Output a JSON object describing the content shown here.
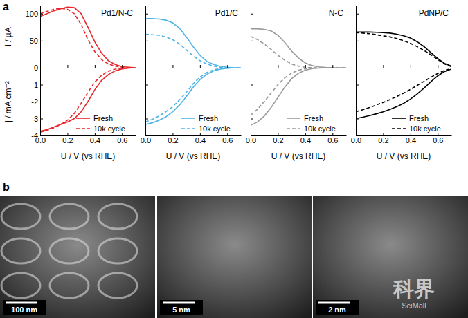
{
  "chart_data": [
    {
      "type": "line",
      "title": "Pd1/N-C",
      "y_label": "i / µA",
      "tick_labels": "y",
      "x": [
        0,
        0.05,
        0.1,
        0.15,
        0.2,
        0.25,
        0.3,
        0.35,
        0.4,
        0.45,
        0.5,
        0.55,
        0.6,
        0.65,
        0.7
      ],
      "series": [
        {
          "color": "#e8262a",
          "line_style": "solid",
          "values": [
            95,
            100,
            105,
            109,
            112,
            111,
            100,
            75,
            48,
            27,
            13,
            6,
            2,
            1,
            0
          ]
        },
        {
          "color": "#e8262a",
          "line_style": "dashed",
          "values": [
            100,
            104,
            108,
            110,
            108,
            100,
            80,
            52,
            30,
            15,
            7,
            3,
            1,
            0,
            0
          ]
        }
      ],
      "xlim": [
        0,
        0.7
      ],
      "ylim": [
        0,
        115
      ],
      "xticks": [
        {
          "value": 0,
          "label": "0.0"
        },
        {
          "value": 0.2,
          "label": "0.2"
        },
        {
          "value": 0.4,
          "label": "0.4"
        },
        {
          "value": 0.6,
          "label": "0.6"
        }
      ],
      "yticks": [
        0,
        50,
        100
      ]
    },
    {
      "type": "line",
      "title": "Pd1/C",
      "tick_labels": false,
      "x": [
        0,
        0.05,
        0.1,
        0.15,
        0.2,
        0.25,
        0.3,
        0.35,
        0.4,
        0.45,
        0.5,
        0.55,
        0.6,
        0.65,
        0.7
      ],
      "series": [
        {
          "color": "#4db3e6",
          "line_style": "solid",
          "values": [
            91,
            91,
            90,
            88,
            83,
            73,
            57,
            39,
            23,
            12,
            6,
            2.5,
            1,
            0,
            0
          ]
        },
        {
          "color": "#4db3e6",
          "line_style": "dashed",
          "values": [
            62,
            61,
            60,
            57,
            52,
            44,
            33,
            22,
            13,
            7,
            3,
            1,
            0.5,
            0,
            0
          ]
        }
      ],
      "xlim": [
        0,
        0.7
      ],
      "ylim": [
        0,
        115
      ],
      "xticks": [
        {
          "value": 0,
          "label": "0.0"
        },
        {
          "value": 0.2,
          "label": "0.2"
        },
        {
          "value": 0.4,
          "label": "0.4"
        },
        {
          "value": 0.6,
          "label": "0.6"
        }
      ],
      "yticks": [
        0,
        50,
        100
      ]
    },
    {
      "type": "line",
      "title": "N-C",
      "tick_labels": false,
      "x": [
        0,
        0.05,
        0.1,
        0.15,
        0.2,
        0.25,
        0.3,
        0.35,
        0.4,
        0.45,
        0.5,
        0.55,
        0.6,
        0.65,
        0.7
      ],
      "series": [
        {
          "color": "#999999",
          "line_style": "solid",
          "values": [
            72,
            72,
            71,
            68,
            60,
            47,
            31,
            18,
            9,
            4,
            1.5,
            0.5,
            0,
            0,
            0
          ]
        },
        {
          "color": "#999999",
          "line_style": "dashed",
          "values": [
            58,
            52,
            44,
            34,
            23,
            14,
            7,
            3,
            1,
            0.3,
            0,
            0,
            0,
            0,
            0
          ]
        }
      ],
      "xlim": [
        0,
        0.7
      ],
      "ylim": [
        0,
        115
      ],
      "xticks": [
        {
          "value": 0,
          "label": "0.0"
        },
        {
          "value": 0.2,
          "label": "0.2"
        },
        {
          "value": 0.4,
          "label": "0.4"
        },
        {
          "value": 0.6,
          "label": "0.6"
        }
      ],
      "yticks": [
        0,
        50,
        100
      ]
    },
    {
      "type": "line",
      "title": "PdNP/C",
      "tick_labels": false,
      "x": [
        0,
        0.05,
        0.1,
        0.15,
        0.2,
        0.25,
        0.3,
        0.35,
        0.4,
        0.45,
        0.5,
        0.55,
        0.6,
        0.65,
        0.7
      ],
      "series": [
        {
          "color": "#000000",
          "line_style": "solid",
          "values": [
            66,
            66,
            66,
            65.5,
            65,
            64,
            62,
            59,
            55,
            48,
            39,
            28,
            17,
            8,
            3
          ]
        },
        {
          "color": "#000000",
          "line_style": "dashed",
          "values": [
            65,
            64,
            63,
            61,
            59,
            57,
            54,
            50,
            45,
            39,
            32,
            24,
            15,
            7,
            2
          ]
        }
      ],
      "xlim": [
        0,
        0.7
      ],
      "ylim": [
        0,
        115
      ],
      "xticks": [
        {
          "value": 0,
          "label": "0.0"
        },
        {
          "value": 0.2,
          "label": "0.2"
        },
        {
          "value": 0.4,
          "label": "0.4"
        },
        {
          "value": 0.6,
          "label": "0.6"
        }
      ],
      "yticks": [
        0,
        50,
        100
      ]
    },
    {
      "type": "line",
      "y_label": "j / mA cm⁻²",
      "x_label": "U / V (vs RHE)",
      "tick_labels": true,
      "legend": "lower right",
      "x": [
        0,
        0.05,
        0.1,
        0.15,
        0.2,
        0.25,
        0.3,
        0.35,
        0.4,
        0.45,
        0.5,
        0.55,
        0.6,
        0.65,
        0.7
      ],
      "series": [
        {
          "name": "Fresh",
          "color": "#e8262a",
          "line_style": "solid",
          "values": [
            -3.75,
            -3.65,
            -3.5,
            -3.35,
            -3.2,
            -3.0,
            -2.6,
            -2.0,
            -1.3,
            -0.75,
            -0.4,
            -0.18,
            -0.07,
            -0.02,
            0
          ]
        },
        {
          "name": "10k cycle",
          "color": "#e8262a",
          "line_style": "dashed",
          "values": [
            -3.8,
            -3.7,
            -3.55,
            -3.35,
            -3.1,
            -2.7,
            -2.1,
            -1.45,
            -0.85,
            -0.45,
            -0.2,
            -0.08,
            -0.03,
            0,
            0
          ]
        }
      ],
      "xlim": [
        0,
        0.7
      ],
      "ylim": [
        -4,
        0
      ],
      "xticks": [
        {
          "value": 0,
          "label": "0.0"
        },
        {
          "value": 0.2,
          "label": "0.2"
        },
        {
          "value": 0.4,
          "label": "0.4"
        },
        {
          "value": 0.6,
          "label": "0.6"
        }
      ],
      "yticks": [
        -4,
        -3,
        -2,
        -1
      ]
    },
    {
      "type": "line",
      "x_label": "U / V (vs RHE)",
      "tick_labels": "x",
      "legend": "lower right",
      "x": [
        0,
        0.05,
        0.1,
        0.15,
        0.2,
        0.25,
        0.3,
        0.35,
        0.4,
        0.45,
        0.5,
        0.55,
        0.6,
        0.65,
        0.7
      ],
      "series": [
        {
          "name": "Fresh",
          "color": "#4db3e6",
          "line_style": "solid",
          "values": [
            -3.35,
            -3.25,
            -3.1,
            -2.9,
            -2.6,
            -2.2,
            -1.7,
            -1.15,
            -0.7,
            -0.38,
            -0.18,
            -0.08,
            -0.03,
            0,
            0
          ]
        },
        {
          "name": "10k cycle",
          "color": "#4db3e6",
          "line_style": "dashed",
          "values": [
            -3.2,
            -3.05,
            -2.85,
            -2.6,
            -2.3,
            -1.9,
            -1.45,
            -0.95,
            -0.55,
            -0.28,
            -0.12,
            -0.05,
            -0.02,
            0,
            0
          ]
        }
      ],
      "xlim": [
        0,
        0.7
      ],
      "ylim": [
        -4,
        0
      ],
      "xticks": [
        {
          "value": 0,
          "label": "0.0"
        },
        {
          "value": 0.2,
          "label": "0.2"
        },
        {
          "value": 0.4,
          "label": "0.4"
        },
        {
          "value": 0.6,
          "label": "0.6"
        }
      ],
      "yticks": [
        -4,
        -3,
        -2,
        -1
      ]
    },
    {
      "type": "line",
      "x_label": "U / V (vs RHE)",
      "tick_labels": "x",
      "legend": "lower right",
      "x": [
        0,
        0.05,
        0.1,
        0.15,
        0.2,
        0.25,
        0.3,
        0.35,
        0.4,
        0.45,
        0.5,
        0.55,
        0.6,
        0.65,
        0.7
      ],
      "series": [
        {
          "name": "Fresh",
          "color": "#999999",
          "line_style": "solid",
          "values": [
            -3.4,
            -3.2,
            -2.85,
            -2.35,
            -1.75,
            -1.15,
            -0.65,
            -0.33,
            -0.14,
            -0.05,
            -0.02,
            0,
            0,
            0,
            0
          ]
        },
        {
          "name": "10k cycle",
          "color": "#999999",
          "line_style": "dashed",
          "values": [
            -2.8,
            -2.45,
            -2.0,
            -1.5,
            -1.0,
            -0.6,
            -0.32,
            -0.15,
            -0.06,
            -0.02,
            0,
            0,
            0,
            0,
            0
          ]
        }
      ],
      "xlim": [
        0,
        0.7
      ],
      "ylim": [
        -4,
        0
      ],
      "xticks": [
        {
          "value": 0,
          "label": "0.0"
        },
        {
          "value": 0.2,
          "label": "0.2"
        },
        {
          "value": 0.4,
          "label": "0.4"
        },
        {
          "value": 0.6,
          "label": "0.6"
        }
      ],
      "yticks": [
        -4,
        -3,
        -2,
        -1
      ]
    },
    {
      "type": "line",
      "x_label": "U / V (vs RHE)",
      "tick_labels": "x",
      "legend": "lower right",
      "x": [
        0,
        0.05,
        0.1,
        0.15,
        0.2,
        0.25,
        0.3,
        0.35,
        0.4,
        0.45,
        0.5,
        0.55,
        0.6,
        0.65,
        0.7
      ],
      "series": [
        {
          "name": "Fresh",
          "color": "#000000",
          "line_style": "solid",
          "values": [
            -3.0,
            -2.92,
            -2.83,
            -2.72,
            -2.6,
            -2.46,
            -2.3,
            -2.1,
            -1.85,
            -1.55,
            -1.2,
            -0.82,
            -0.48,
            -0.22,
            -0.08
          ]
        },
        {
          "name": "10k cycle",
          "color": "#000000",
          "line_style": "dashed",
          "values": [
            -2.6,
            -2.48,
            -2.35,
            -2.2,
            -2.05,
            -1.88,
            -1.7,
            -1.5,
            -1.28,
            -1.04,
            -0.8,
            -0.56,
            -0.34,
            -0.16,
            -0.05
          ]
        }
      ],
      "xlim": [
        0,
        0.7
      ],
      "ylim": [
        -4,
        0
      ],
      "xticks": [
        {
          "value": 0,
          "label": "0.0"
        },
        {
          "value": 0.2,
          "label": "0.2"
        },
        {
          "value": 0.4,
          "label": "0.4"
        },
        {
          "value": 0.6,
          "label": "0.6"
        }
      ],
      "yticks": [
        -4,
        -3,
        -2,
        -1
      ]
    }
  ],
  "panel_labels": [
    "a",
    "b"
  ],
  "images": [
    {
      "scale_bar": "100 nm"
    },
    {
      "scale_bar": "5 nm"
    },
    {
      "scale_bar": "2 nm"
    }
  ],
  "watermark": [
    "科界",
    "SciMall"
  ]
}
